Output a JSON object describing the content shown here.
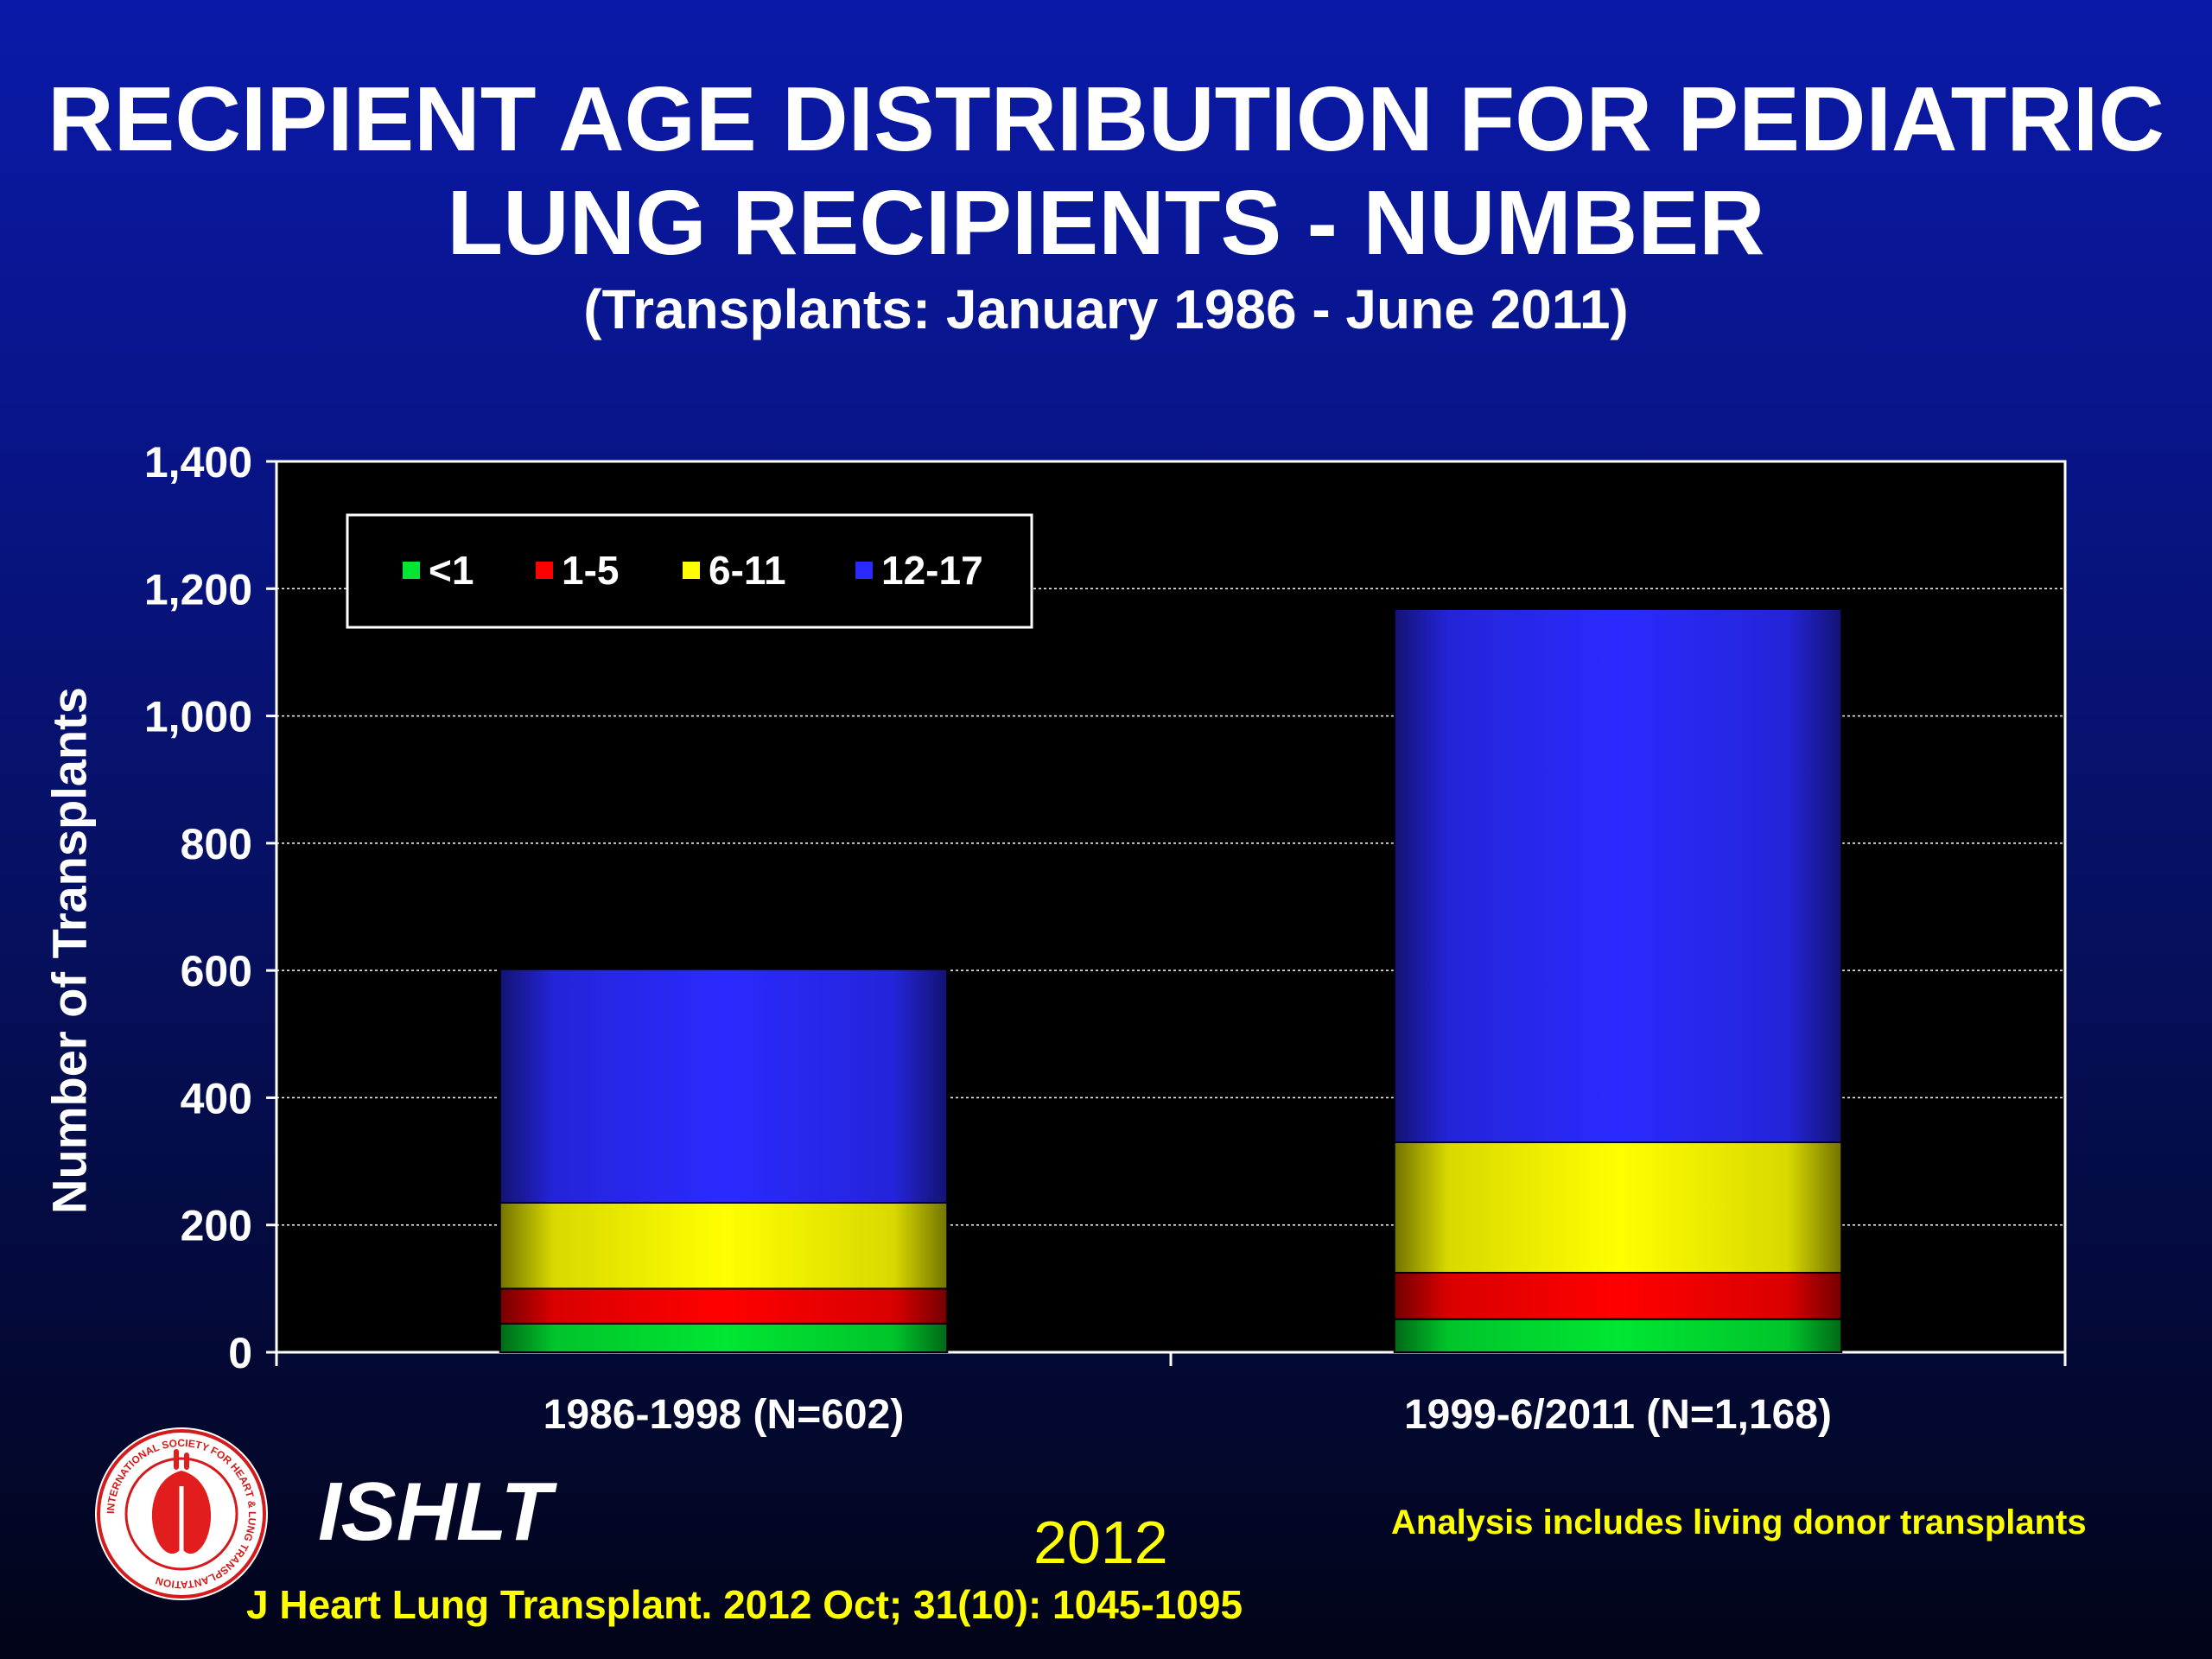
{
  "header": {
    "title_line1": "RECIPIENT AGE DISTRIBUTION FOR PEDIATRIC",
    "title_line2": "LUNG RECIPIENTS - NUMBER",
    "subtitle": "(Transplants: January 1986 - June 2011)"
  },
  "chart_data": {
    "type": "bar",
    "stacked": true,
    "ylabel": "Number of Transplants",
    "ylim": [
      0,
      1400
    ],
    "yticks": [
      0,
      200,
      400,
      600,
      800,
      1000,
      1200,
      1400
    ],
    "ytick_labels": [
      "0",
      "200",
      "400",
      "600",
      "800",
      "1,000",
      "1,200",
      "1,400"
    ],
    "grid": true,
    "legend_position": "top-left",
    "categories": [
      "1986-1998 (N=602)",
      "1999-6/2011 (N=1,168)"
    ],
    "series": [
      {
        "name": "<1",
        "color": "#00e632",
        "values": [
          45,
          52
        ]
      },
      {
        "name": "1-5",
        "color": "#ff0000",
        "values": [
          55,
          73
        ]
      },
      {
        "name": "6-11",
        "color": "#ffff00",
        "values": [
          135,
          205
        ]
      },
      {
        "name": "12-17",
        "color": "#2a2aff",
        "values": [
          367,
          838
        ]
      }
    ]
  },
  "footer": {
    "logo_text": "INTERNATIONAL SOCIETY FOR HEART & LUNG TRANSPLANTATION",
    "org": "ISHLT",
    "year": "2012",
    "note": "Analysis includes living donor transplants",
    "citation": "J Heart Lung Transplant.  2012 Oct; 31(10): 1045-1095"
  }
}
